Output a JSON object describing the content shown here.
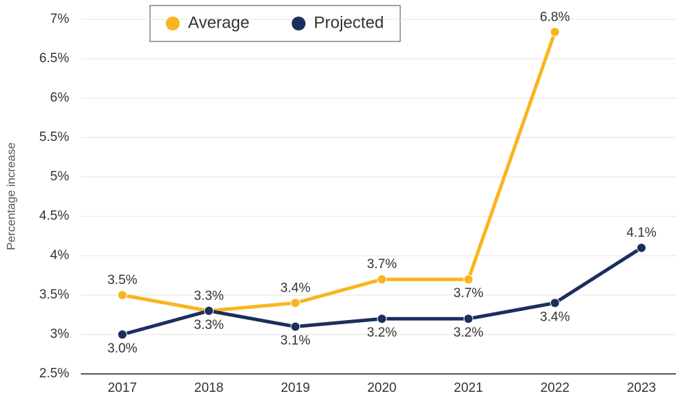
{
  "chart_data": {
    "type": "line",
    "y_label": "Percentage increase",
    "categories": [
      "2017",
      "2018",
      "2019",
      "2020",
      "2021",
      "2022",
      "2023"
    ],
    "series": [
      {
        "name": "Average",
        "color": "#f9b51e",
        "values": [
          3.5,
          3.3,
          3.4,
          3.7,
          3.7,
          6.84,
          null
        ],
        "value_labels": [
          "3.5%",
          "3.3%",
          "3.4%",
          "3.7%",
          "3.7%",
          "6.8%",
          null
        ]
      },
      {
        "name": "Projected",
        "color": "#1b2f5e",
        "values": [
          3.0,
          3.3,
          3.1,
          3.2,
          3.2,
          3.4,
          4.1
        ],
        "value_labels": [
          "3.0%",
          "3.3%",
          "3.1%",
          "3.2%",
          "3.2%",
          "3.4%",
          "4.1%"
        ]
      }
    ],
    "ylim": [
      2.5,
      7
    ],
    "yticks": [
      {
        "value": 2.5,
        "label": "2.5%"
      },
      {
        "value": 3,
        "label": "3%"
      },
      {
        "value": 3.5,
        "label": "3.5%"
      },
      {
        "value": 4,
        "label": "4%"
      },
      {
        "value": 4.5,
        "label": "4.5%"
      },
      {
        "value": 5,
        "label": "5%"
      },
      {
        "value": 5.5,
        "label": "5.5%"
      },
      {
        "value": 6,
        "label": "6%"
      },
      {
        "value": 6.5,
        "label": "6.5%"
      },
      {
        "value": 7,
        "label": "7%"
      }
    ],
    "grid": true,
    "legend": "top"
  }
}
